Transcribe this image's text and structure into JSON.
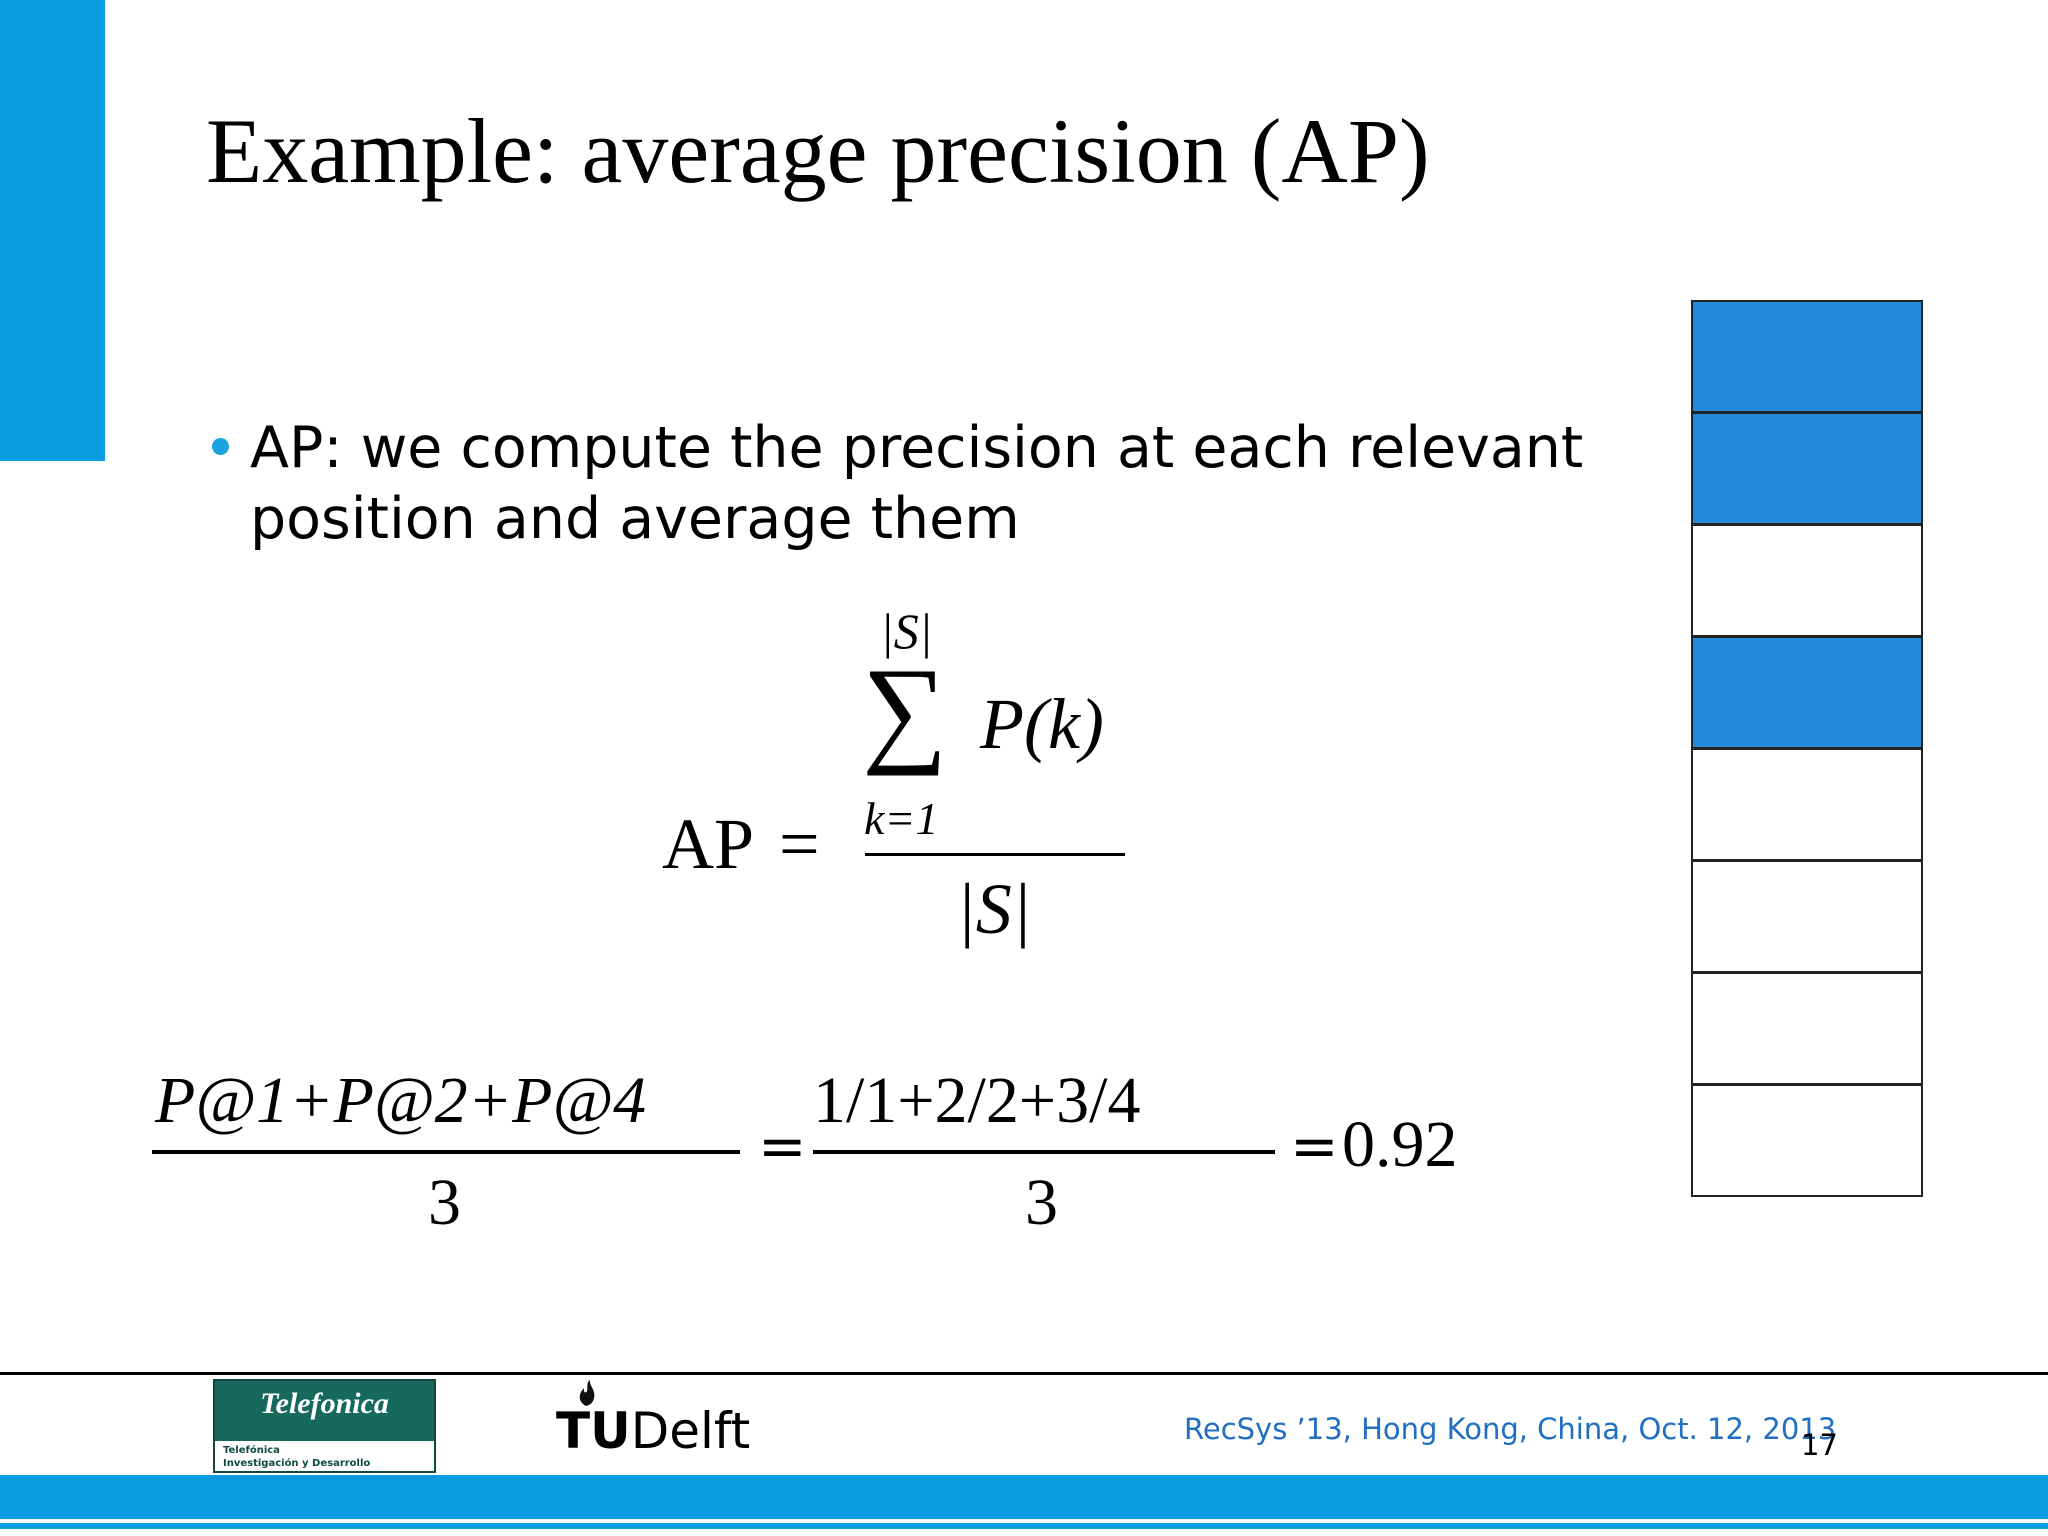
{
  "slide": {
    "title": "Example: average precision (AP)",
    "bullet": "AP: we compute the precision at each relevant position and average them"
  },
  "formula1": {
    "lhs": "AP",
    "eq": "=",
    "sum_upper": "|S|",
    "sum_symbol": "∑",
    "summand": "P(k)",
    "sum_lower": "k=1",
    "denominator": "|S|"
  },
  "formula2": {
    "numerator1": "P@1+P@2+P@4",
    "denominator1": "3",
    "eq1": "=",
    "numerator2": "1/1+2/2+3/4",
    "denominator2": "3",
    "eq2": "=",
    "result": "0.92"
  },
  "ranking": [
    true,
    true,
    false,
    true,
    false,
    false,
    false,
    false
  ],
  "footer": {
    "caption": "RecSys ’13, Hong Kong, China, Oct. 12, 2013",
    "page_number": "17",
    "telefonica_brand": "Telefonica",
    "telefonica_sub1": "Telefónica",
    "telefonica_sub2": "Investigación y Desarrollo",
    "tudelft_tu": "TU",
    "tudelft_delft": "Delft"
  },
  "colors": {
    "accent": "#0a9be0",
    "relevant": "#228ad8",
    "bullet": "#1ba3e0",
    "caption": "#1f6fc2"
  }
}
